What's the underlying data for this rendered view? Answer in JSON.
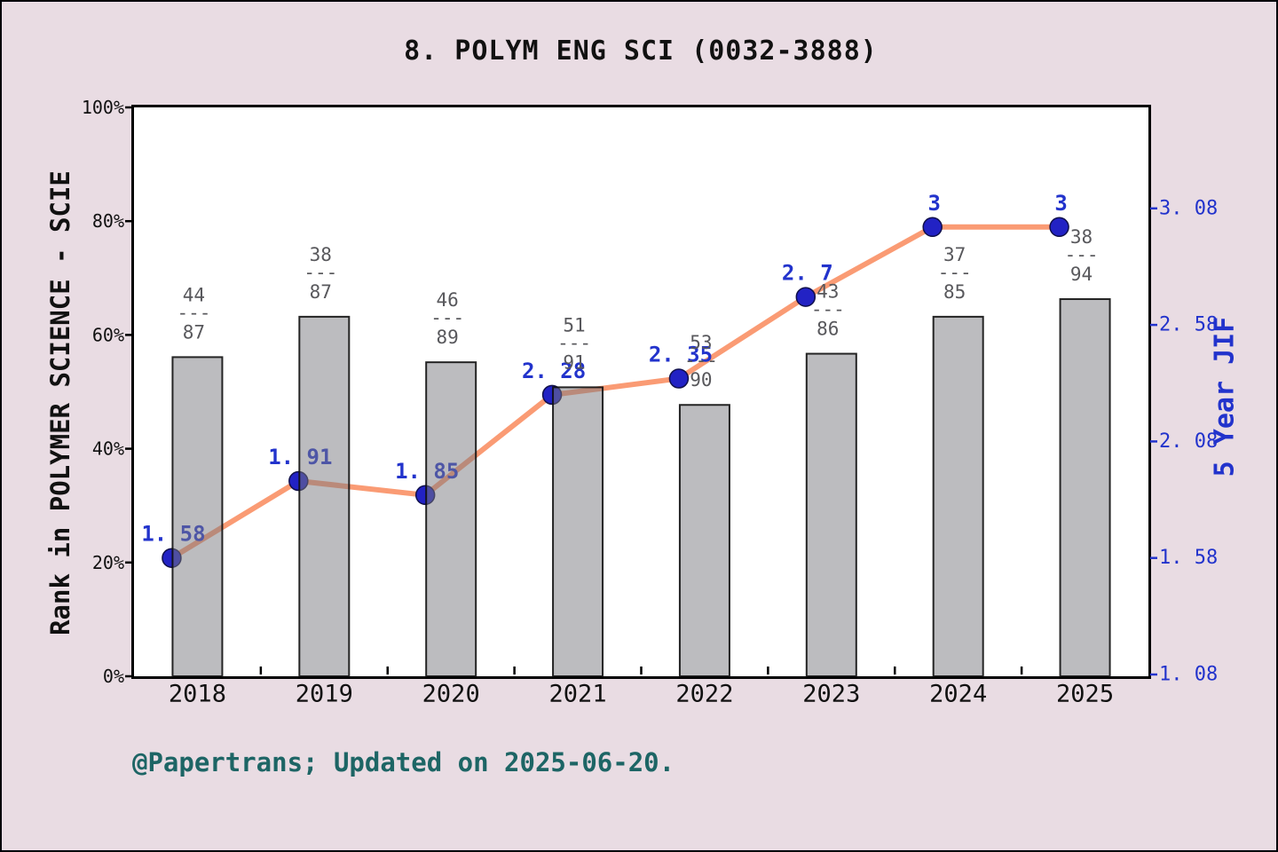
{
  "title": "8. POLYM ENG SCI (0032-3888)",
  "footer": "@Papertrans; Updated on 2025-06-20.",
  "colors": {
    "page_bg": "#e9dce3",
    "plot_bg": "#ffffff",
    "bar_fill": "rgba(122,122,128,0.5)",
    "bar_edge": "rgba(15,15,15,0.9)",
    "line": "#fa9b74",
    "marker": "#2222c4",
    "marker_edge": "#10104a",
    "point_label": "#2233cc",
    "rank_label": "#58585c",
    "left_tick_label": "#111111",
    "right_tick_label": "#2233cc",
    "footer_color": "#1d6565"
  },
  "chart_data": {
    "type": "bar+line (dual axis)",
    "categories": [
      "2018",
      "2019",
      "2020",
      "2021",
      "2022",
      "2023",
      "2024",
      "2025"
    ],
    "series": [
      {
        "name": "Rank in POLYMER SCIENCE - SCIE",
        "chart": "bar",
        "axis": "left",
        "unit": "%",
        "values": [
          56.1,
          63.2,
          55.2,
          50.8,
          47.7,
          56.7,
          63.2,
          66.3
        ],
        "rank_labels": [
          {
            "num": "44",
            "den": "87"
          },
          {
            "num": "38",
            "den": "87"
          },
          {
            "num": "46",
            "den": "89"
          },
          {
            "num": "51",
            "den": "91"
          },
          {
            "num": "53",
            "den": "90"
          },
          {
            "num": "43",
            "den": "86"
          },
          {
            "num": "37",
            "den": "85"
          },
          {
            "num": "38",
            "den": "94"
          }
        ]
      },
      {
        "name": "5 Year JIF",
        "chart": "line",
        "axis": "right",
        "values": [
          1.58,
          1.91,
          1.85,
          2.28,
          2.35,
          2.7,
          3.0,
          3.0
        ],
        "point_labels": [
          "1. 58",
          "1. 91",
          "1. 85",
          "2. 28",
          "2. 35",
          "2. 7",
          "3",
          "3"
        ]
      }
    ],
    "fraction_bar": "---",
    "left_axis": {
      "label": "Rank in POLYMER SCIENCE - SCIE",
      "range": [
        0,
        100
      ],
      "ticks": [
        {
          "value": 0,
          "label": "0%"
        },
        {
          "value": 20,
          "label": "20%"
        },
        {
          "value": 40,
          "label": "40%"
        },
        {
          "value": 60,
          "label": "60%"
        },
        {
          "value": 80,
          "label": "80%"
        },
        {
          "value": 100,
          "label": "100%"
        }
      ]
    },
    "right_axis": {
      "label": "5 Year JIF",
      "range": [
        1.08,
        3.08
      ],
      "ticks": [
        {
          "value": 1.08,
          "label": "1. 08"
        },
        {
          "value": 1.58,
          "label": "1. 58"
        },
        {
          "value": 2.08,
          "label": "2. 08"
        },
        {
          "value": 2.58,
          "label": "2. 58"
        },
        {
          "value": 3.08,
          "label": "3. 08"
        }
      ]
    },
    "x_axis": {
      "grid": false,
      "tick_direction": "in"
    },
    "legend": "none"
  }
}
